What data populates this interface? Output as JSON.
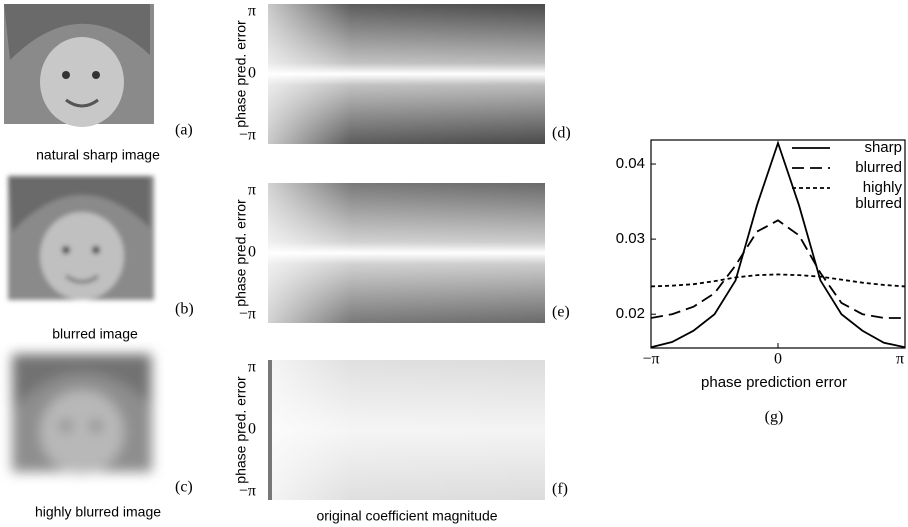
{
  "panels": [
    {
      "letter": "(a)",
      "caption": "natural sharp image"
    },
    {
      "letter": "(b)",
      "caption": "blurred image"
    },
    {
      "letter": "(c)",
      "caption": "highly blurred image"
    }
  ],
  "heatmaps": [
    {
      "letter": "(d)",
      "ylabel": "phase pred. error",
      "yticks": [
        "π",
        "0",
        "−π"
      ]
    },
    {
      "letter": "(e)",
      "ylabel": "phase pred. error",
      "yticks": [
        "π",
        "0",
        "−π"
      ]
    },
    {
      "letter": "(f)",
      "ylabel": "phase pred. error",
      "yticks": [
        "π",
        "0",
        "−π"
      ]
    }
  ],
  "heatmap_xlabel": "original coefficient magnitude",
  "chart_data": {
    "type": "line",
    "xlabel": "phase prediction error",
    "caption": "(g)",
    "x": [
      -3.14,
      -2.62,
      -2.09,
      -1.57,
      -1.05,
      -0.52,
      0,
      0.52,
      1.05,
      1.57,
      2.09,
      2.62,
      3.14
    ],
    "series": [
      {
        "name": "sharp",
        "color": "#000000",
        "style": "solid",
        "values": [
          0.0156,
          0.0163,
          0.0178,
          0.02,
          0.0245,
          0.0345,
          0.0428,
          0.0345,
          0.0245,
          0.02,
          0.0178,
          0.0162,
          0.0156
        ]
      },
      {
        "name": "blurred",
        "color": "#000000",
        "style": "dashed",
        "values": [
          0.0195,
          0.02,
          0.021,
          0.0228,
          0.0265,
          0.031,
          0.0325,
          0.0305,
          0.0255,
          0.0215,
          0.02,
          0.0195,
          0.0195
        ]
      },
      {
        "name": "highly blurred",
        "color": "#000000",
        "style": "dotted",
        "values": [
          0.0237,
          0.0238,
          0.024,
          0.0244,
          0.0249,
          0.0252,
          0.0253,
          0.0252,
          0.025,
          0.0246,
          0.0242,
          0.0239,
          0.0237
        ]
      }
    ],
    "xlim": [
      -3.14159,
      3.14159
    ],
    "xticks": [
      {
        "value": -3.14159,
        "label": "−π"
      },
      0,
      {
        "value": 3.14159,
        "label": "π"
      }
    ],
    "ylim": [
      0.0155,
      0.0432
    ],
    "yticks": [
      0.02,
      0.03,
      0.04
    ],
    "legend": "upper right"
  }
}
